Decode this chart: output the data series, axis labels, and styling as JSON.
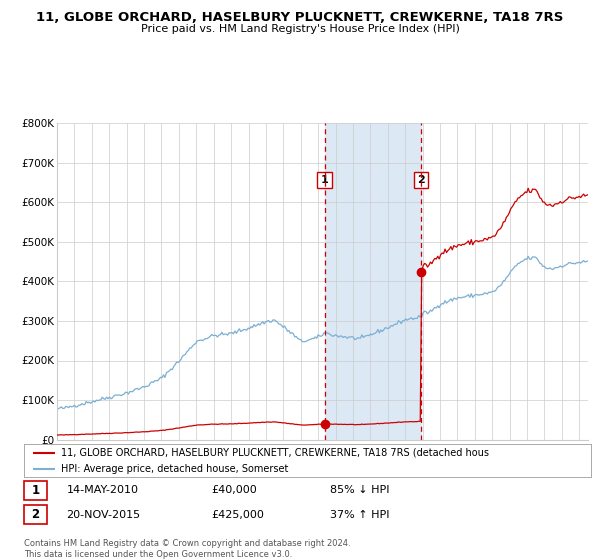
{
  "title": "11, GLOBE ORCHARD, HASELBURY PLUCKNETT, CREWKERNE, TA18 7RS",
  "subtitle": "Price paid vs. HM Land Registry's House Price Index (HPI)",
  "legend_line1": "11, GLOBE ORCHARD, HASELBURY PLUCKNETT, CREWKERNE, TA18 7RS (detached hous",
  "legend_line2": "HPI: Average price, detached house, Somerset",
  "transaction1_date": "14-MAY-2010",
  "transaction1_price": 40000,
  "transaction1_label": "85% ↓ HPI",
  "transaction2_date": "20-NOV-2015",
  "transaction2_price": 425000,
  "transaction2_label": "37% ↑ HPI",
  "footnote1": "Contains HM Land Registry data © Crown copyright and database right 2024.",
  "footnote2": "This data is licensed under the Open Government Licence v3.0.",
  "ylim": [
    0,
    800000
  ],
  "yticks": [
    0,
    100000,
    200000,
    300000,
    400000,
    500000,
    600000,
    700000,
    800000
  ],
  "ytick_labels": [
    "£0",
    "£100K",
    "£200K",
    "£300K",
    "£400K",
    "£500K",
    "£600K",
    "£700K",
    "£800K"
  ],
  "hpi_color": "#7bafd4",
  "price_color": "#cc0000",
  "background_color": "#ffffff",
  "grid_color": "#cccccc",
  "shade_color": "#dce9f5",
  "trans1_x": 2010.37,
  "trans2_x": 2015.9,
  "xlim_left": 1995.0,
  "xlim_right": 2025.5
}
